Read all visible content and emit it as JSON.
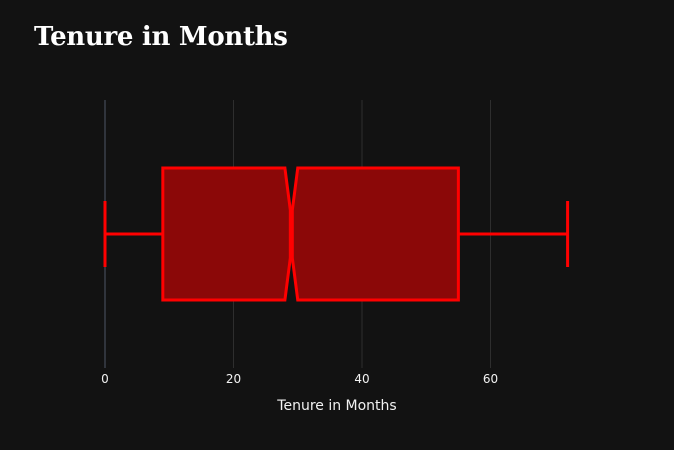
{
  "chart_data": {
    "type": "box",
    "title": "Tenure in Months",
    "xlabel": "Tenure in Months",
    "ylabel": "",
    "notched": true,
    "orientation": "horizontal",
    "xlim": [
      0,
      80
    ],
    "x_ticks": [
      0,
      20,
      40,
      60
    ],
    "grid": true,
    "stats": {
      "min": 0,
      "q1": 9,
      "median": 29,
      "q3": 55,
      "max": 72,
      "notch_low": 28,
      "notch_high": 30
    },
    "colors": {
      "background": "#121212",
      "box_fill": "#8b0808",
      "box_line": "#ff0000",
      "grid": "#2e2e2e",
      "zero_line": "#3a3f4a"
    }
  }
}
